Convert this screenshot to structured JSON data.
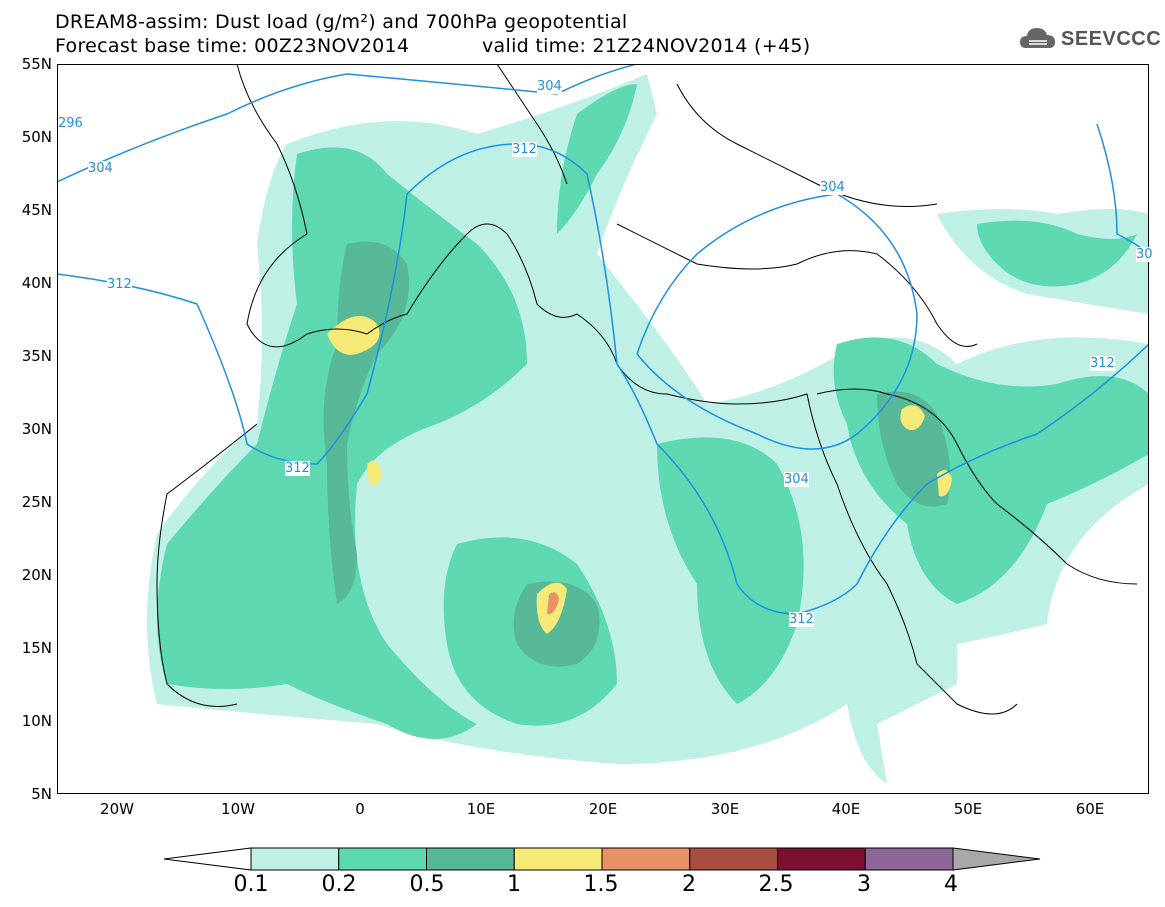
{
  "header": {
    "title_line1": "DREAM8-assim: Dust load (g/m²) and 700hPa geopotential",
    "title_line2a": "Forecast base time: 00Z23NOV2014",
    "title_line2b": "valid time: 21Z24NOV2014 (+45)",
    "logo_text": "SEEVCCC"
  },
  "axes": {
    "lat_labels": [
      "55N",
      "50N",
      "45N",
      "40N",
      "35N",
      "30N",
      "25N",
      "20N",
      "15N",
      "10N",
      "5N"
    ],
    "lon_labels": [
      "20W",
      "10W",
      "0",
      "10E",
      "20E",
      "30E",
      "40E",
      "50E",
      "60E"
    ]
  },
  "contours": {
    "labels": [
      "304",
      "312",
      "312",
      "304",
      "312",
      "304",
      "312",
      "296",
      "304",
      "312",
      "30"
    ]
  },
  "colorbar": {
    "labels": [
      "0.1",
      "0.2",
      "0.5",
      "1",
      "1.5",
      "2",
      "2.5",
      "3",
      "4"
    ],
    "colors": [
      "#bff0e6",
      "#5dd8b0",
      "#56b896",
      "#f5ea78",
      "#e89066",
      "#a84e40",
      "#7c1030",
      "#8c6898",
      "#a8a8a8"
    ]
  },
  "colors": {
    "contour_line": "#1e90e0",
    "coast": "#000000"
  }
}
